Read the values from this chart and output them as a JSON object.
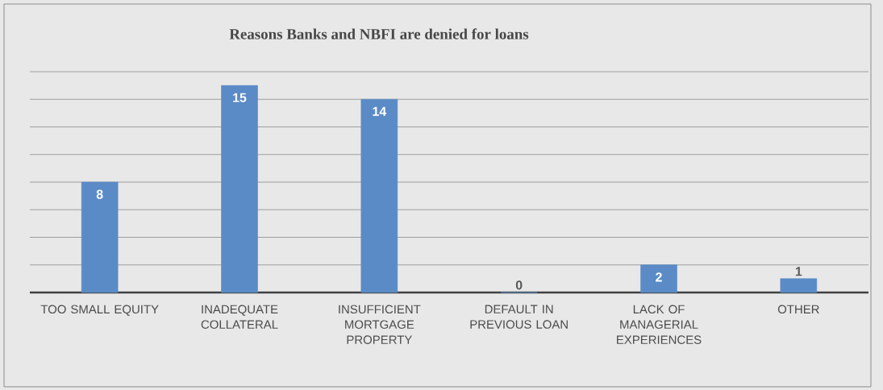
{
  "chart_data": {
    "type": "bar",
    "title": "Reasons Banks and NBFI are denied for loans",
    "categories": [
      "TOO SMALL EQUITY",
      "INADEQUATE COLLATERAL",
      "INSUFFICIENT MORTGAGE PROPERTY",
      "DEFAULT IN PREVIOUS LOAN",
      "LACK OF MANAGERIAL EXPERIENCES",
      "OTHER"
    ],
    "values": [
      8,
      15,
      14,
      0,
      2,
      1
    ],
    "color": "#5b8bc6",
    "ylim": [
      0,
      16
    ],
    "grid": "y",
    "data_labels": true,
    "tick_labels": "x"
  }
}
